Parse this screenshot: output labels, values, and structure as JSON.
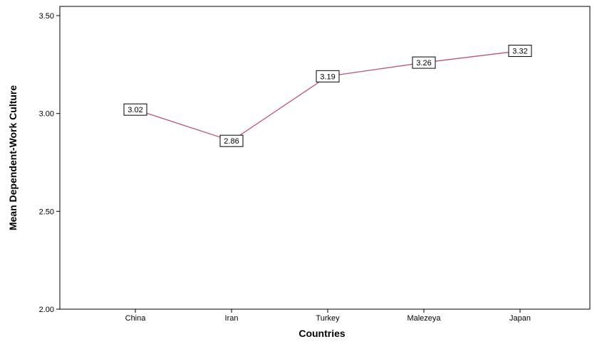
{
  "chart_data": {
    "type": "line",
    "title": "",
    "xlabel": "Countries",
    "ylabel": "Mean Dependent-Work Culture",
    "categories": [
      "China",
      "Iran",
      "Turkey",
      "Malezeya",
      "Japan"
    ],
    "series": [
      {
        "values": [
          3.02,
          2.86,
          3.19,
          3.26,
          3.32
        ]
      }
    ],
    "data_labels": [
      "3.02",
      "2.86",
      "3.19",
      "3.26",
      "3.32"
    ],
    "ylim": [
      2.0,
      3.5
    ],
    "yticks": [
      2.0,
      2.5,
      3.0,
      3.5
    ],
    "ytick_labels": [
      "2.00",
      "2.50",
      "3.00",
      "3.50"
    ],
    "grid": false,
    "line_color": "#c0507a",
    "legend": "none"
  }
}
